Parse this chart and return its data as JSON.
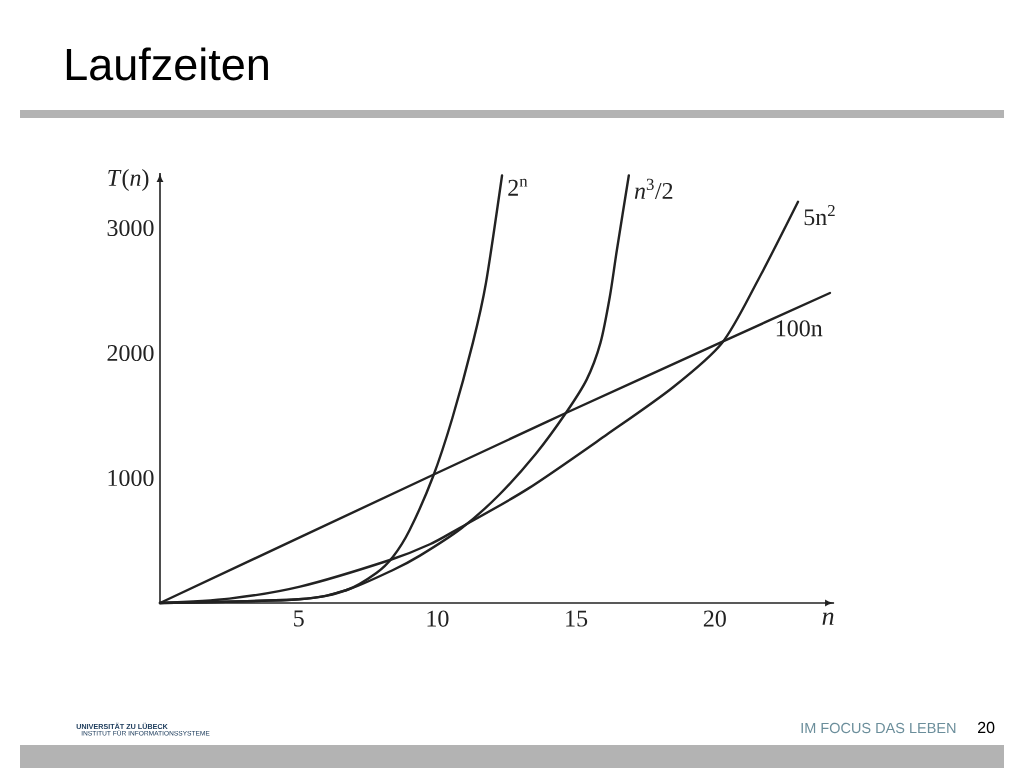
{
  "chart_data": {
    "type": "line",
    "title": "Laufzeiten",
    "xlabel": "n",
    "ylabel": "*T*(*n*)",
    "xlim": [
      0,
      24.3
    ],
    "ylim": [
      0,
      3440
    ],
    "xticks": [
      5,
      10,
      15,
      20
    ],
    "yticks": [
      1000,
      2000,
      3000
    ],
    "marker": "none",
    "series": [
      {
        "name": "2$^{n}$",
        "color": "#222222",
        "x": [
          0,
          5,
          6.73,
          7.8,
          8.4,
          9.0,
          9.84,
          10.54,
          11.28,
          11.75,
          12.33
        ],
        "values": [
          0,
          30,
          104,
          240,
          370,
          584,
          1010,
          1480,
          2083,
          2560,
          3420
        ]
      },
      {
        "name": "*n*$^{3}$/2",
        "color": "#222222",
        "x": [
          0,
          5,
          6.73,
          8.4,
          9.37,
          10.88,
          12.22,
          13.55,
          14.63,
          15.38,
          15.88,
          16.22,
          16.47,
          16.9
        ],
        "values": [
          0,
          30,
          104,
          264,
          379,
          600,
          864,
          1194,
          1520,
          1787,
          2083,
          2456,
          2824,
          3420
        ]
      },
      {
        "name": "5n$^{2}$",
        "color": "#222222",
        "x": [
          0,
          2.5,
          5.05,
          8.29,
          9.73,
          10.8,
          13.27,
          16.1,
          18.46,
          20.26,
          21.56,
          23
        ],
        "values": [
          0,
          35,
          131,
          344,
          470,
          600,
          915,
          1346,
          1720,
          2080,
          2584,
          3210
        ]
      },
      {
        "name": "100n",
        "color": "#222222",
        "x": [
          0,
          9.87,
          14.63,
          20.2,
          24.15
        ],
        "values": [
          0,
          1028,
          1520,
          2083,
          2480
        ]
      }
    ],
    "annotations": [
      "UNIVERSITÄT ZU LÜBECK",
      "INSTITUT FÜR INFORMATIONSSYSTEME",
      "IM FOCUS DAS LEBEN",
      "20"
    ]
  }
}
